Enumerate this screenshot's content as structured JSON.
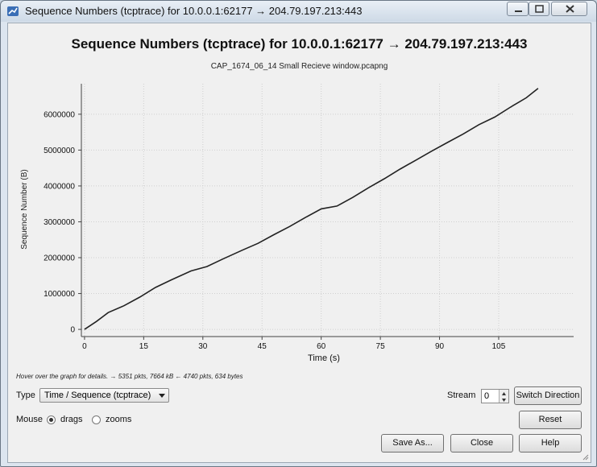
{
  "window": {
    "title": "Sequence Numbers (tcptrace) for 10.0.0.1:62177 → 204.79.197.213:443"
  },
  "plot": {
    "title": "Sequence Numbers (tcptrace) for 10.0.0.1:62177 → 204.79.197.213:443",
    "subtitle": "CAP_1674_06_14 Small Recieve window.pcapng"
  },
  "chart_data": {
    "type": "line",
    "xlabel": "Time (s)",
    "ylabel": "Sequence Number (B)",
    "xlim": [
      -0.8,
      124
    ],
    "ylim": [
      -200000,
      6850000
    ],
    "xticks": [
      0,
      15,
      30,
      45,
      60,
      75,
      90,
      105
    ],
    "xtick_labels": [
      "0",
      "15",
      "30",
      "45",
      "60",
      "75",
      "90",
      "105"
    ],
    "yticks": [
      0,
      1000000,
      2000000,
      3000000,
      4000000,
      5000000,
      6000000
    ],
    "ytick_labels": [
      "0",
      "1000000",
      "2000000",
      "3000000",
      "4000000",
      "5000000",
      "6000000"
    ],
    "grid": true,
    "series": [
      {
        "color": "#222222",
        "x": [
          0,
          3,
          6,
          10,
          14,
          18,
          22,
          27,
          31,
          35,
          40,
          44,
          48,
          52,
          56,
          60,
          64,
          68,
          72,
          76,
          80,
          84,
          88,
          92,
          96,
          100,
          104,
          108,
          112,
          115
        ],
        "y": [
          0,
          220000,
          470000,
          660000,
          900000,
          1170000,
          1380000,
          1630000,
          1750000,
          1960000,
          2210000,
          2400000,
          2640000,
          2870000,
          3120000,
          3360000,
          3440000,
          3680000,
          3950000,
          4200000,
          4470000,
          4720000,
          4970000,
          5210000,
          5450000,
          5710000,
          5920000,
          6200000,
          6460000,
          6720000
        ]
      }
    ]
  },
  "status": {
    "hint": "Hover over the graph for details. → 5351 pkts, 7664 kB ← 4740 pkts, 634 bytes"
  },
  "controls": {
    "type_label": "Type",
    "type_value": "Time / Sequence (tcptrace)",
    "stream_label": "Stream",
    "stream_value": "0",
    "switch_direction": "Switch Direction",
    "mouse_label": "Mouse",
    "drags_label": "drags",
    "zooms_label": "zooms",
    "mouse_mode": "drags",
    "reset": "Reset",
    "save_as": "Save As...",
    "close": "Close",
    "help": "Help"
  }
}
